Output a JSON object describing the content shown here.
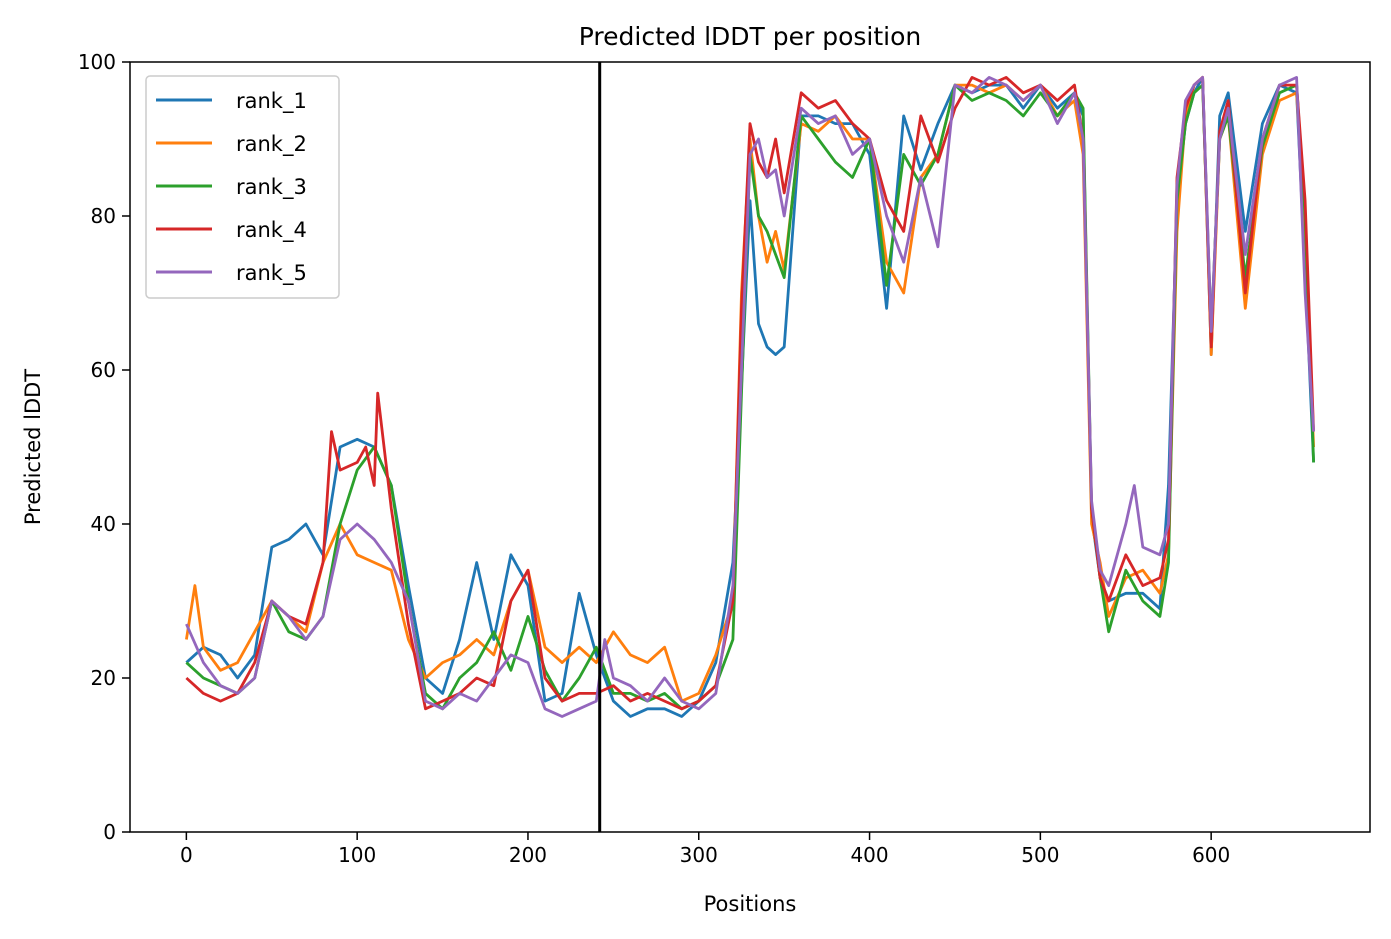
{
  "chart_data": {
    "type": "line",
    "title": "Predicted lDDT per position",
    "xlabel": "Positions",
    "ylabel": "Predicted lDDT",
    "xlim": [
      -33,
      693
    ],
    "ylim": [
      0,
      100
    ],
    "xticks": [
      0,
      100,
      200,
      300,
      400,
      500,
      600
    ],
    "yticks": [
      0,
      20,
      40,
      60,
      80,
      100
    ],
    "grid": false,
    "legend_position": "top-left",
    "vline_x": 242,
    "vline_color": "#000000",
    "series": [
      {
        "name": "rank_1",
        "color": "#1f77b4",
        "x": [
          0,
          10,
          20,
          30,
          40,
          50,
          60,
          70,
          80,
          90,
          100,
          110,
          120,
          130,
          140,
          150,
          160,
          170,
          180,
          190,
          200,
          210,
          220,
          230,
          240,
          250,
          260,
          270,
          280,
          290,
          300,
          310,
          320,
          325,
          330,
          335,
          340,
          345,
          350,
          360,
          370,
          380,
          390,
          400,
          410,
          420,
          430,
          440,
          450,
          460,
          470,
          480,
          490,
          500,
          510,
          520,
          525,
          530,
          535,
          540,
          550,
          560,
          570,
          575,
          580,
          585,
          590,
          595,
          600,
          605,
          610,
          620,
          630,
          640,
          650,
          655,
          660
        ],
        "values": [
          22,
          24,
          23,
          20,
          23,
          37,
          38,
          40,
          36,
          50,
          51,
          50,
          45,
          32,
          20,
          18,
          25,
          35,
          25,
          36,
          32,
          17,
          18,
          31,
          23,
          17,
          15,
          16,
          16,
          15,
          17,
          22,
          35,
          58,
          82,
          66,
          63,
          62,
          63,
          93,
          93,
          92,
          92,
          88,
          68,
          93,
          86,
          92,
          97,
          96,
          97,
          97,
          94,
          97,
          94,
          96,
          93,
          41,
          33,
          30,
          31,
          31,
          29,
          45,
          82,
          92,
          96,
          98,
          62,
          93,
          96,
          78,
          92,
          97,
          96,
          73,
          48
        ]
      },
      {
        "name": "rank_2",
        "color": "#ff7f0e",
        "x": [
          0,
          5,
          10,
          20,
          30,
          40,
          50,
          60,
          70,
          80,
          90,
          100,
          110,
          120,
          130,
          140,
          150,
          160,
          170,
          180,
          190,
          200,
          210,
          220,
          230,
          240,
          250,
          260,
          270,
          280,
          290,
          300,
          310,
          320,
          325,
          330,
          335,
          340,
          345,
          350,
          360,
          370,
          380,
          390,
          400,
          410,
          420,
          430,
          440,
          450,
          460,
          470,
          480,
          490,
          500,
          510,
          520,
          525,
          530,
          535,
          540,
          550,
          560,
          570,
          575,
          580,
          585,
          590,
          595,
          600,
          605,
          610,
          620,
          630,
          640,
          650,
          655,
          660
        ],
        "values": [
          25,
          32,
          24,
          21,
          22,
          26,
          30,
          28,
          26,
          35,
          40,
          36,
          35,
          34,
          25,
          20,
          22,
          23,
          25,
          23,
          30,
          34,
          24,
          22,
          24,
          22,
          26,
          23,
          22,
          24,
          17,
          18,
          23,
          30,
          70,
          90,
          80,
          74,
          78,
          73,
          92,
          91,
          93,
          90,
          90,
          74,
          70,
          85,
          88,
          97,
          97,
          96,
          97,
          95,
          97,
          93,
          95,
          88,
          40,
          35,
          28,
          33,
          34,
          31,
          36,
          78,
          93,
          97,
          98,
          62,
          90,
          93,
          68,
          88,
          95,
          96,
          78,
          50
        ]
      },
      {
        "name": "rank_3",
        "color": "#2ca02c",
        "x": [
          0,
          10,
          20,
          30,
          40,
          50,
          60,
          70,
          80,
          90,
          100,
          110,
          120,
          130,
          140,
          150,
          160,
          170,
          180,
          190,
          200,
          210,
          220,
          230,
          240,
          250,
          260,
          270,
          280,
          290,
          300,
          310,
          320,
          325,
          330,
          335,
          340,
          345,
          350,
          360,
          370,
          380,
          390,
          400,
          410,
          420,
          430,
          440,
          450,
          460,
          470,
          480,
          490,
          500,
          510,
          520,
          525,
          530,
          535,
          540,
          550,
          560,
          570,
          575,
          580,
          585,
          590,
          595,
          600,
          605,
          610,
          620,
          630,
          640,
          650,
          655,
          660
        ],
        "values": [
          22,
          20,
          19,
          18,
          20,
          30,
          26,
          25,
          28,
          40,
          47,
          50,
          45,
          30,
          18,
          16,
          20,
          22,
          26,
          21,
          28,
          21,
          17,
          20,
          24,
          18,
          18,
          17,
          18,
          16,
          17,
          19,
          25,
          57,
          88,
          80,
          78,
          75,
          72,
          93,
          90,
          87,
          85,
          90,
          71,
          88,
          84,
          88,
          97,
          95,
          96,
          95,
          93,
          96,
          93,
          96,
          94,
          42,
          33,
          26,
          34,
          30,
          28,
          35,
          82,
          92,
          96,
          97,
          65,
          90,
          93,
          72,
          89,
          96,
          97,
          80,
          48
        ]
      },
      {
        "name": "rank_4",
        "color": "#d62728",
        "x": [
          0,
          10,
          20,
          30,
          40,
          50,
          60,
          70,
          80,
          85,
          90,
          100,
          105,
          110,
          112,
          120,
          130,
          140,
          150,
          160,
          170,
          180,
          190,
          200,
          210,
          220,
          230,
          240,
          250,
          260,
          270,
          280,
          290,
          300,
          310,
          320,
          325,
          330,
          335,
          340,
          345,
          350,
          360,
          370,
          380,
          390,
          400,
          410,
          420,
          430,
          440,
          450,
          460,
          470,
          480,
          490,
          500,
          510,
          520,
          525,
          530,
          535,
          540,
          550,
          560,
          570,
          575,
          580,
          585,
          590,
          595,
          600,
          605,
          610,
          620,
          630,
          640,
          650,
          655,
          660
        ],
        "values": [
          20,
          18,
          17,
          18,
          22,
          30,
          28,
          27,
          35,
          52,
          47,
          48,
          50,
          45,
          57,
          42,
          27,
          16,
          17,
          18,
          20,
          19,
          30,
          34,
          20,
          17,
          18,
          18,
          19,
          17,
          18,
          17,
          16,
          17,
          19,
          30,
          68,
          92,
          87,
          85,
          90,
          83,
          96,
          94,
          95,
          92,
          90,
          82,
          78,
          93,
          87,
          94,
          98,
          97,
          98,
          96,
          97,
          95,
          97,
          90,
          42,
          33,
          30,
          36,
          32,
          33,
          38,
          85,
          94,
          97,
          98,
          63,
          91,
          95,
          70,
          90,
          97,
          97,
          82,
          52
        ]
      },
      {
        "name": "rank_5",
        "color": "#9467bd",
        "x": [
          0,
          10,
          20,
          30,
          40,
          50,
          60,
          70,
          80,
          90,
          100,
          110,
          120,
          130,
          140,
          150,
          160,
          170,
          180,
          190,
          200,
          210,
          220,
          230,
          240,
          245,
          250,
          260,
          270,
          280,
          290,
          300,
          310,
          320,
          325,
          330,
          335,
          340,
          345,
          350,
          360,
          370,
          380,
          390,
          400,
          410,
          420,
          430,
          440,
          450,
          460,
          470,
          480,
          490,
          500,
          510,
          520,
          525,
          530,
          535,
          540,
          550,
          555,
          560,
          570,
          575,
          580,
          585,
          590,
          595,
          600,
          605,
          610,
          620,
          630,
          640,
          650,
          655,
          660
        ],
        "values": [
          27,
          22,
          19,
          18,
          20,
          30,
          28,
          25,
          28,
          38,
          40,
          38,
          35,
          30,
          17,
          16,
          18,
          17,
          20,
          23,
          22,
          16,
          15,
          16,
          17,
          25,
          20,
          19,
          17,
          20,
          17,
          16,
          18,
          32,
          60,
          88,
          90,
          85,
          86,
          80,
          94,
          92,
          93,
          88,
          90,
          80,
          74,
          85,
          76,
          97,
          96,
          98,
          97,
          95,
          97,
          92,
          96,
          90,
          43,
          34,
          32,
          40,
          45,
          37,
          36,
          40,
          84,
          95,
          97,
          98,
          65,
          90,
          94,
          75,
          90,
          97,
          98,
          70,
          52
        ]
      }
    ]
  }
}
